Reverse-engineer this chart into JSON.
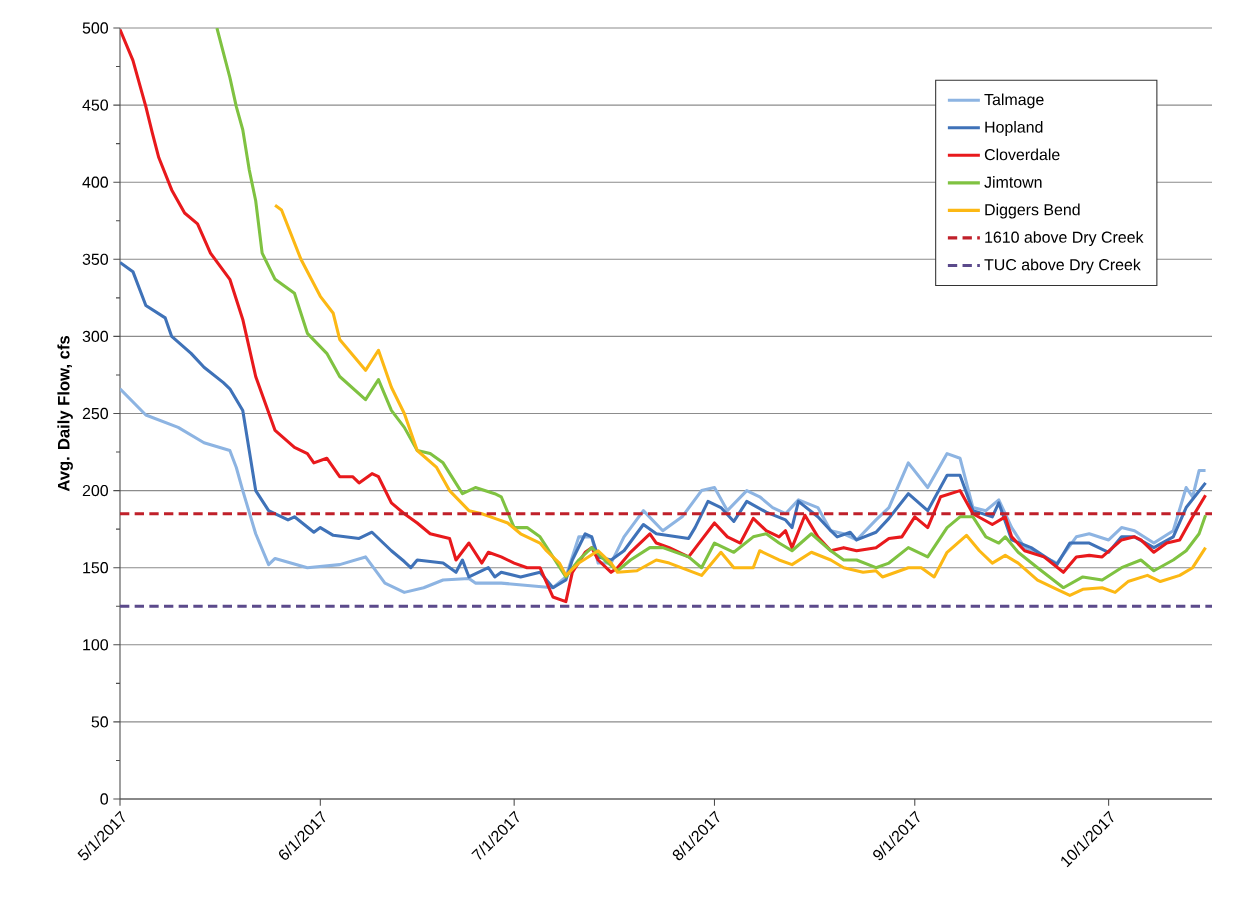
{
  "chart_data": {
    "type": "line",
    "ylabel": "Avg. Daily Flow, cfs",
    "xlim": [
      "2017-05-01",
      "2017-10-17"
    ],
    "xticks": [
      {
        "value": "2017-05-01",
        "label": "5/1/2017"
      },
      {
        "value": "2017-06-01",
        "label": "6/1/2017"
      },
      {
        "value": "2017-07-01",
        "label": "7/1/2017"
      },
      {
        "value": "2017-08-01",
        "label": "8/1/2017"
      },
      {
        "value": "2017-09-01",
        "label": "9/1/2017"
      },
      {
        "value": "2017-10-01",
        "label": "10/1/2017"
      }
    ],
    "ylim": [
      0,
      500
    ],
    "yticks": [
      0,
      50,
      100,
      150,
      200,
      250,
      300,
      350,
      400,
      450,
      500
    ],
    "grid": "y",
    "legend": "top right",
    "series": [
      {
        "name": "Talmage",
        "color": "#8db4e2",
        "x": [
          "2017-05-01",
          "2017-05-05",
          "2017-05-10",
          "2017-05-14",
          "2017-05-18",
          "2017-05-19",
          "2017-05-20",
          "2017-05-22",
          "2017-05-24",
          "2017-05-25",
          "2017-05-30",
          "2017-06-04",
          "2017-06-08",
          "2017-06-11",
          "2017-06-14",
          "2017-06-17",
          "2017-06-20",
          "2017-06-24",
          "2017-06-25",
          "2017-06-29",
          "2017-07-07",
          "2017-07-09",
          "2017-07-11",
          "2017-07-13",
          "2017-07-14",
          "2017-07-16",
          "2017-07-18",
          "2017-07-21",
          "2017-07-24",
          "2017-07-27",
          "2017-07-30",
          "2017-08-01",
          "2017-08-03",
          "2017-08-06",
          "2017-08-08",
          "2017-08-10",
          "2017-08-12",
          "2017-08-14",
          "2017-08-17",
          "2017-08-19",
          "2017-08-21",
          "2017-08-23",
          "2017-08-26",
          "2017-08-28",
          "2017-08-31",
          "2017-09-03",
          "2017-09-06",
          "2017-09-08",
          "2017-09-10",
          "2017-09-12",
          "2017-09-14",
          "2017-09-16",
          "2017-09-18",
          "2017-09-23",
          "2017-09-26",
          "2017-09-28",
          "2017-10-01",
          "2017-10-03",
          "2017-10-05",
          "2017-10-08",
          "2017-10-11",
          "2017-10-13",
          "2017-10-14",
          "2017-10-15",
          "2017-10-16"
        ],
        "values": [
          266,
          249,
          241,
          231,
          226,
          215,
          200,
          172,
          152,
          156,
          150,
          152,
          157,
          140,
          134,
          137,
          142,
          143,
          140,
          140,
          137,
          144,
          170,
          170,
          153,
          153,
          170,
          187,
          174,
          183,
          200,
          202,
          187,
          200,
          196,
          189,
          185,
          194,
          189,
          174,
          172,
          168,
          181,
          189,
          218,
          202,
          224,
          221,
          189,
          187,
          194,
          176,
          163,
          153,
          170,
          172,
          168,
          176,
          174,
          166,
          174,
          202,
          196,
          213,
          213
        ]
      },
      {
        "name": "Hopland",
        "color": "#3f72b8",
        "x": [
          "2017-05-01",
          "2017-05-03",
          "2017-05-05",
          "2017-05-08",
          "2017-05-09",
          "2017-05-12",
          "2017-05-14",
          "2017-05-17",
          "2017-05-18",
          "2017-05-20",
          "2017-05-21",
          "2017-05-22",
          "2017-05-24",
          "2017-05-27",
          "2017-05-28",
          "2017-05-31",
          "2017-06-01",
          "2017-06-03",
          "2017-06-07",
          "2017-06-09",
          "2017-06-12",
          "2017-06-14",
          "2017-06-15",
          "2017-06-16",
          "2017-06-20",
          "2017-06-22",
          "2017-06-23",
          "2017-06-24",
          "2017-06-27",
          "2017-06-28",
          "2017-06-29",
          "2017-07-02",
          "2017-07-05",
          "2017-07-07",
          "2017-07-09",
          "2017-07-10",
          "2017-07-12",
          "2017-07-13",
          "2017-07-14",
          "2017-07-16",
          "2017-07-18",
          "2017-07-21",
          "2017-07-23",
          "2017-07-28",
          "2017-07-29",
          "2017-07-31",
          "2017-08-02",
          "2017-08-04",
          "2017-08-06",
          "2017-08-09",
          "2017-08-12",
          "2017-08-13",
          "2017-08-14",
          "2017-08-17",
          "2017-08-19",
          "2017-08-20",
          "2017-08-22",
          "2017-08-23",
          "2017-08-26",
          "2017-08-28",
          "2017-08-31",
          "2017-09-03",
          "2017-09-06",
          "2017-09-08",
          "2017-09-10",
          "2017-09-13",
          "2017-09-14",
          "2017-09-16",
          "2017-09-19",
          "2017-09-23",
          "2017-09-25",
          "2017-09-28",
          "2017-10-01",
          "2017-10-03",
          "2017-10-05",
          "2017-10-08",
          "2017-10-11",
          "2017-10-13",
          "2017-10-16"
        ],
        "values": [
          348,
          342,
          320,
          312,
          300,
          289,
          280,
          270,
          266,
          252,
          226,
          200,
          187,
          181,
          183,
          173,
          176,
          171,
          169,
          173,
          161,
          154,
          150,
          155,
          153,
          147,
          155,
          144,
          150,
          144,
          147,
          144,
          147,
          137,
          142,
          155,
          172,
          170,
          157,
          155,
          161,
          178,
          172,
          169,
          176,
          193,
          189,
          180,
          193,
          186,
          181,
          176,
          193,
          183,
          174,
          170,
          173,
          168,
          173,
          182,
          198,
          187,
          210,
          210,
          187,
          183,
          192,
          168,
          163,
          152,
          166,
          166,
          160,
          170,
          170,
          163,
          170,
          189,
          205
        ]
      },
      {
        "name": "Cloverdale",
        "color": "#e8191c",
        "x": [
          "2017-05-01",
          "2017-05-03",
          "2017-05-05",
          "2017-05-06",
          "2017-05-07",
          "2017-05-09",
          "2017-05-11",
          "2017-05-13",
          "2017-05-15",
          "2017-05-18",
          "2017-05-20",
          "2017-05-22",
          "2017-05-25",
          "2017-05-28",
          "2017-05-30",
          "2017-05-31",
          "2017-06-02",
          "2017-06-04",
          "2017-06-06",
          "2017-06-07",
          "2017-06-09",
          "2017-06-10",
          "2017-06-12",
          "2017-06-14",
          "2017-06-16",
          "2017-06-18",
          "2017-06-21",
          "2017-06-22",
          "2017-06-24",
          "2017-06-26",
          "2017-06-27",
          "2017-06-29",
          "2017-07-01",
          "2017-07-03",
          "2017-07-05",
          "2017-07-07",
          "2017-07-09",
          "2017-07-10",
          "2017-07-12",
          "2017-07-13",
          "2017-07-14",
          "2017-07-16",
          "2017-07-17",
          "2017-07-19",
          "2017-07-22",
          "2017-07-23",
          "2017-07-25",
          "2017-07-28",
          "2017-07-30",
          "2017-08-01",
          "2017-08-03",
          "2017-08-05",
          "2017-08-07",
          "2017-08-09",
          "2017-08-11",
          "2017-08-12",
          "2017-08-13",
          "2017-08-15",
          "2017-08-17",
          "2017-08-19",
          "2017-08-21",
          "2017-08-23",
          "2017-08-26",
          "2017-08-28",
          "2017-08-30",
          "2017-09-01",
          "2017-09-03",
          "2017-09-05",
          "2017-09-08",
          "2017-09-10",
          "2017-09-13",
          "2017-09-15",
          "2017-09-16",
          "2017-09-18",
          "2017-09-21",
          "2017-09-24",
          "2017-09-26",
          "2017-09-28",
          "2017-09-30",
          "2017-10-03",
          "2017-10-05",
          "2017-10-06",
          "2017-10-08",
          "2017-10-10",
          "2017-10-12",
          "2017-10-14",
          "2017-10-16"
        ],
        "values": [
          499,
          479,
          449,
          432,
          416,
          395,
          380,
          373,
          354,
          337,
          311,
          274,
          239,
          228,
          224,
          218,
          221,
          209,
          209,
          205,
          211,
          209,
          192,
          185,
          179,
          172,
          169,
          155,
          166,
          153,
          160,
          157,
          153,
          150,
          150,
          131,
          128,
          147,
          160,
          163,
          155,
          147,
          150,
          160,
          172,
          166,
          163,
          157,
          168,
          179,
          170,
          166,
          182,
          174,
          170,
          174,
          163,
          184,
          170,
          161,
          163,
          161,
          163,
          169,
          170,
          183,
          176,
          196,
          200,
          185,
          178,
          183,
          170,
          161,
          157,
          147,
          157,
          158,
          157,
          168,
          170,
          168,
          160,
          166,
          168,
          183,
          197
        ]
      },
      {
        "name": "Jimtown",
        "color": "#7fc241",
        "x": [
          "2017-05-16",
          "2017-05-18",
          "2017-05-19",
          "2017-05-20",
          "2017-05-21",
          "2017-05-22",
          "2017-05-23",
          "2017-05-25",
          "2017-05-28",
          "2017-05-30",
          "2017-06-02",
          "2017-06-04",
          "2017-06-08",
          "2017-06-10",
          "2017-06-12",
          "2017-06-14",
          "2017-06-16",
          "2017-06-18",
          "2017-06-20",
          "2017-06-23",
          "2017-06-25",
          "2017-06-28",
          "2017-06-29",
          "2017-07-01",
          "2017-07-03",
          "2017-07-05",
          "2017-07-07",
          "2017-07-09",
          "2017-07-11",
          "2017-07-13",
          "2017-07-15",
          "2017-07-17",
          "2017-07-19",
          "2017-07-22",
          "2017-07-24",
          "2017-07-28",
          "2017-07-30",
          "2017-08-01",
          "2017-08-04",
          "2017-08-07",
          "2017-08-09",
          "2017-08-11",
          "2017-08-13",
          "2017-08-16",
          "2017-08-19",
          "2017-08-21",
          "2017-08-23",
          "2017-08-26",
          "2017-08-28",
          "2017-08-31",
          "2017-09-03",
          "2017-09-06",
          "2017-09-08",
          "2017-09-10",
          "2017-09-12",
          "2017-09-14",
          "2017-09-15",
          "2017-09-17",
          "2017-09-20",
          "2017-09-24",
          "2017-09-27",
          "2017-09-30",
          "2017-10-03",
          "2017-10-06",
          "2017-10-08",
          "2017-10-11",
          "2017-10-13",
          "2017-10-15",
          "2017-10-16"
        ],
        "values": [
          500,
          468,
          449,
          434,
          408,
          388,
          354,
          337,
          328,
          302,
          289,
          274,
          259,
          272,
          252,
          241,
          226,
          224,
          218,
          198,
          202,
          198,
          196,
          176,
          176,
          170,
          157,
          144,
          155,
          163,
          155,
          148,
          155,
          163,
          163,
          157,
          150,
          166,
          160,
          170,
          172,
          166,
          161,
          172,
          161,
          155,
          155,
          150,
          153,
          163,
          157,
          176,
          183,
          183,
          170,
          166,
          170,
          160,
          150,
          137,
          144,
          142,
          150,
          155,
          148,
          155,
          161,
          172,
          184
        ]
      },
      {
        "name": "Diggers Bend",
        "color": "#fcb814",
        "x": [
          "2017-05-25",
          "2017-05-26",
          "2017-05-29",
          "2017-06-01",
          "2017-06-03",
          "2017-06-04",
          "2017-06-08",
          "2017-06-10",
          "2017-06-12",
          "2017-06-14",
          "2017-06-16",
          "2017-06-19",
          "2017-06-21",
          "2017-06-24",
          "2017-06-26",
          "2017-06-28",
          "2017-06-30",
          "2017-07-02",
          "2017-07-05",
          "2017-07-06",
          "2017-07-08",
          "2017-07-09",
          "2017-07-11",
          "2017-07-14",
          "2017-07-16",
          "2017-07-17",
          "2017-07-20",
          "2017-07-23",
          "2017-07-25",
          "2017-07-30",
          "2017-08-02",
          "2017-08-04",
          "2017-08-07",
          "2017-08-08",
          "2017-08-11",
          "2017-08-13",
          "2017-08-16",
          "2017-08-19",
          "2017-08-21",
          "2017-08-24",
          "2017-08-26",
          "2017-08-27",
          "2017-08-31",
          "2017-09-02",
          "2017-09-04",
          "2017-09-06",
          "2017-09-09",
          "2017-09-11",
          "2017-09-13",
          "2017-09-15",
          "2017-09-17",
          "2017-09-20",
          "2017-09-23",
          "2017-09-25",
          "2017-09-27",
          "2017-09-30",
          "2017-10-02",
          "2017-10-04",
          "2017-10-07",
          "2017-10-09",
          "2017-10-12",
          "2017-10-14",
          "2017-10-16"
        ],
        "values": [
          385,
          382,
          350,
          326,
          315,
          298,
          278,
          291,
          267,
          250,
          226,
          215,
          200,
          187,
          185,
          182,
          179,
          172,
          166,
          161,
          153,
          145,
          153,
          161,
          153,
          147,
          148,
          155,
          153,
          145,
          160,
          150,
          150,
          161,
          155,
          152,
          160,
          155,
          150,
          147,
          148,
          144,
          150,
          150,
          144,
          160,
          171,
          161,
          153,
          158,
          153,
          142,
          136,
          132,
          136,
          137,
          134,
          141,
          145,
          141,
          145,
          150,
          163
        ]
      },
      {
        "name": "1610 above Dry Creek",
        "color": "#c0202a",
        "line_style": "dashed",
        "x": [
          "2017-05-01",
          "2017-10-17"
        ],
        "values": [
          185,
          185
        ]
      },
      {
        "name": "TUC above Dry Creek",
        "color": "#5b4a8b",
        "line_style": "dashed",
        "x": [
          "2017-05-01",
          "2017-10-17"
        ],
        "values": [
          125,
          125
        ]
      }
    ]
  }
}
